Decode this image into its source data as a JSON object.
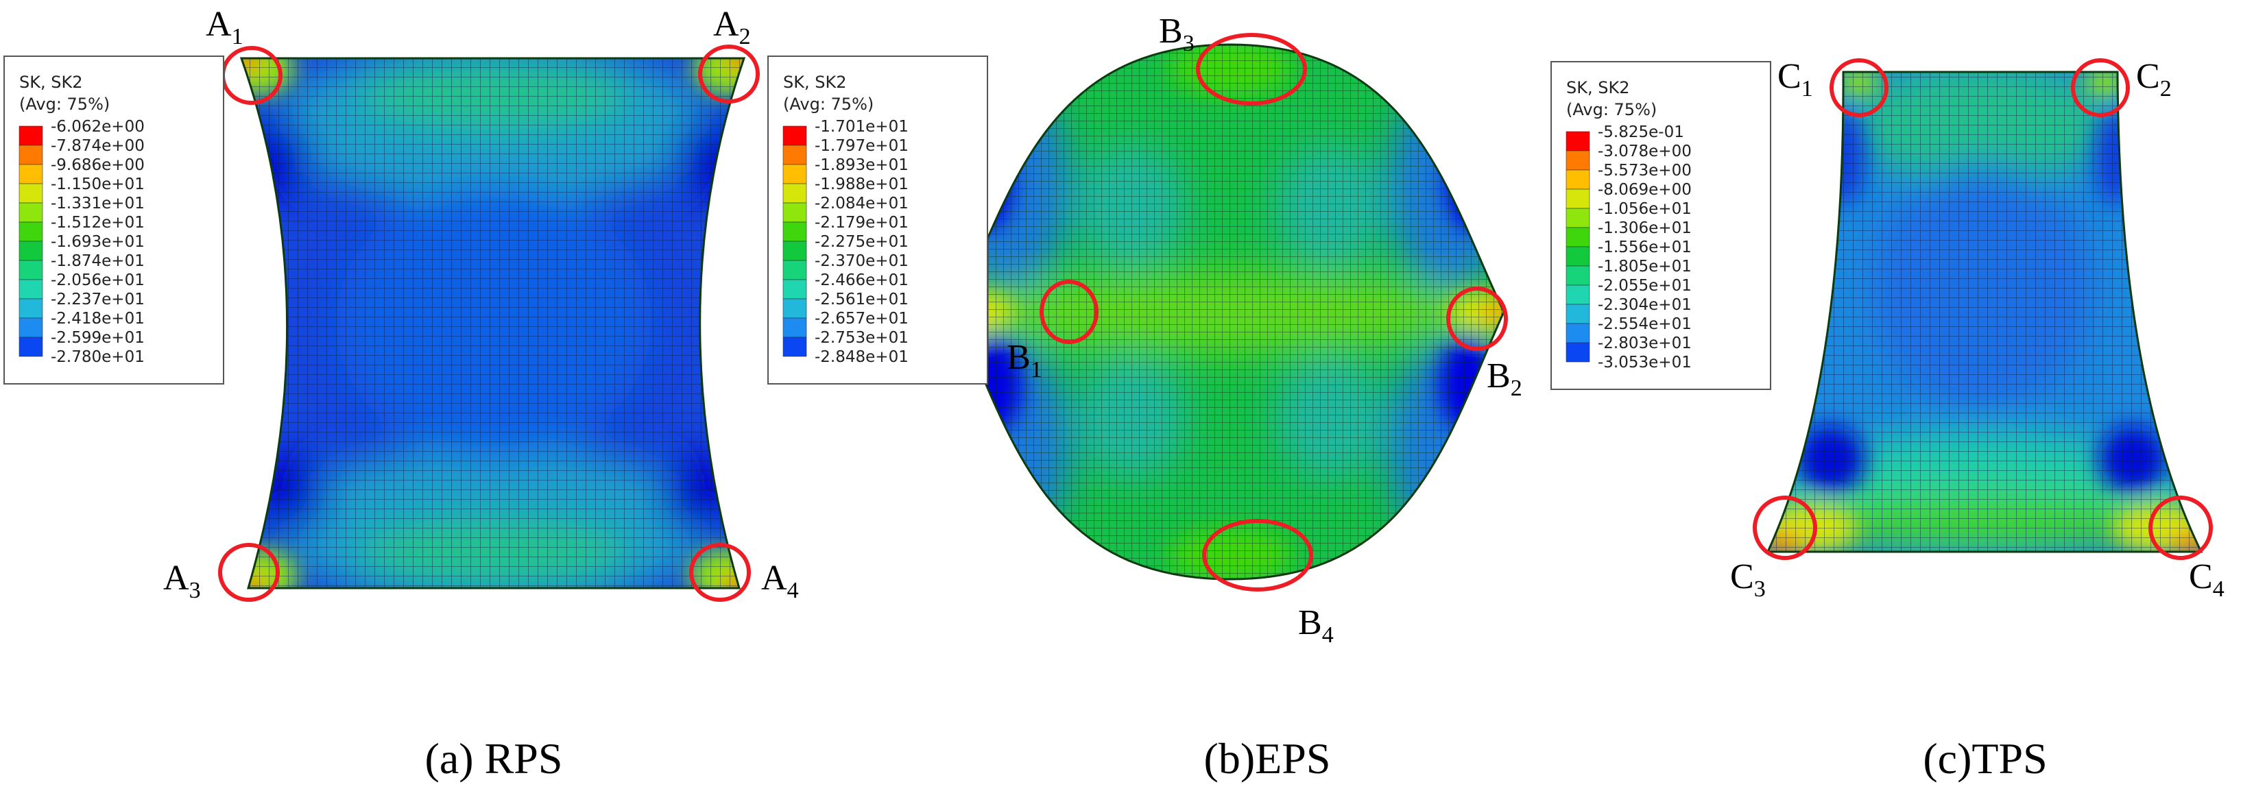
{
  "legend_header": "SK, SK2",
  "legend_avg": "(Avg: 75%)",
  "contour_colors": [
    "#0000ff",
    "#0a46f2",
    "#1c8cf0",
    "#22b8dc",
    "#1fd6b0",
    "#17d47a",
    "#12c83c",
    "#3fd60e",
    "#8ee60c",
    "#d6e60a",
    "#ffbf00",
    "#ff7a00",
    "#ff0000"
  ],
  "panels": [
    {
      "caption": "(a) RPS",
      "shape": "rps",
      "legend_values": [
        "-6.062e+00",
        "-7.874e+00",
        "-9.686e+00",
        "-1.150e+01",
        "-1.331e+01",
        "-1.512e+01",
        "-1.693e+01",
        "-1.874e+01",
        "-2.056e+01",
        "-2.237e+01",
        "-2.418e+01",
        "-2.599e+01",
        "-2.780e+01"
      ],
      "legend_values_2": [
        "-1.701e+01",
        "-1.797e+01",
        "-1.893e+01",
        "-1.988e+01",
        "-2.084e+01",
        "-2.179e+01",
        "-2.275e+01",
        "-2.370e+01",
        "-2.466e+01",
        "-2.561e+01",
        "-2.657e+01",
        "-2.753e+01",
        "-2.848e+01"
      ],
      "markers": [
        {
          "letter": "A",
          "sub": "1"
        },
        {
          "letter": "A",
          "sub": "2"
        },
        {
          "letter": "A",
          "sub": "3"
        },
        {
          "letter": "A",
          "sub": "4"
        }
      ]
    },
    {
      "caption": "(b)EPS",
      "shape": "eps",
      "markers": [
        {
          "letter": "B",
          "sub": "1"
        },
        {
          "letter": "B",
          "sub": "2"
        },
        {
          "letter": "B",
          "sub": "3"
        },
        {
          "letter": "B",
          "sub": "4"
        }
      ]
    },
    {
      "caption": "(c)TPS",
      "shape": "tps",
      "legend_values": [
        "-5.825e-01",
        "-3.078e+00",
        "-5.573e+00",
        "-8.069e+00",
        "-1.056e+01",
        "-1.306e+01",
        "-1.556e+01",
        "-1.805e+01",
        "-2.055e+01",
        "-2.304e+01",
        "-2.554e+01",
        "-2.803e+01",
        "-3.053e+01"
      ],
      "markers": [
        {
          "letter": "C",
          "sub": "1"
        },
        {
          "letter": "C",
          "sub": "2"
        },
        {
          "letter": "C",
          "sub": "3"
        },
        {
          "letter": "C",
          "sub": "4"
        }
      ]
    }
  ]
}
